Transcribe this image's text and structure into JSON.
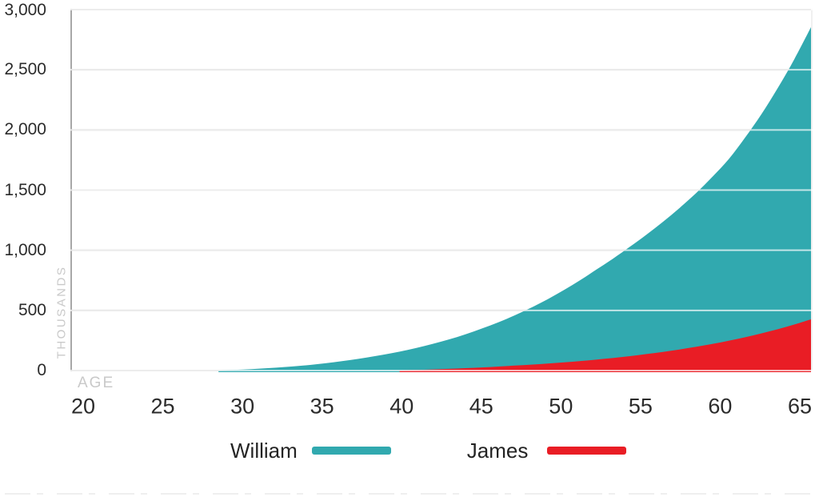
{
  "chart_data": {
    "type": "area",
    "title": "",
    "xlabel": "AGE",
    "ylabel": "THOUSANDS",
    "x_min": 20,
    "x_max": 65,
    "y_min": 0,
    "y_max": 3000,
    "grid": true,
    "legend_position": "bottom",
    "x_ticks": [
      20,
      25,
      30,
      35,
      40,
      45,
      50,
      55,
      60,
      65
    ],
    "y_ticks": [
      {
        "value": 0,
        "label": "0"
      },
      {
        "value": 500,
        "label": "500"
      },
      {
        "value": 1000,
        "label": "1,000"
      },
      {
        "value": 1500,
        "label": "1,500"
      },
      {
        "value": 2000,
        "label": "2,000"
      },
      {
        "value": 2500,
        "label": "2,500"
      },
      {
        "value": 3000,
        "label": "3,000"
      }
    ],
    "x": [
      20,
      21,
      22,
      23,
      24,
      25,
      26,
      27,
      28,
      29,
      30,
      31,
      32,
      33,
      34,
      35,
      36,
      37,
      38,
      39,
      40,
      41,
      42,
      43,
      44,
      45,
      46,
      47,
      48,
      49,
      50,
      51,
      52,
      53,
      54,
      55,
      56,
      57,
      58,
      59,
      60,
      61,
      62,
      63,
      64,
      65
    ],
    "series": [
      {
        "name": "William",
        "color": "#31a9af",
        "values": [
          0,
          0,
          0,
          0,
          0,
          0,
          0,
          0,
          0,
          0,
          6,
          12,
          20,
          29,
          40,
          53,
          69,
          87,
          108,
          131,
          157,
          187,
          221,
          259,
          301,
          349,
          401,
          459,
          523,
          593,
          670,
          753,
          843,
          933,
          1029,
          1129,
          1236,
          1350,
          1473,
          1609,
          1757,
          1937,
          2134,
          2352,
          2591,
          2854
        ]
      },
      {
        "name": "James",
        "color": "#e91d25",
        "values": [
          0,
          0,
          0,
          0,
          0,
          0,
          0,
          0,
          0,
          0,
          0,
          0,
          0,
          0,
          0,
          0,
          0,
          0,
          0,
          0,
          0,
          4,
          9,
          14,
          20,
          26,
          33,
          41,
          49,
          58,
          68,
          79,
          92,
          105,
          120,
          137,
          155,
          175,
          197,
          221,
          248,
          277,
          309,
          344,
          383,
          426
        ]
      }
    ]
  },
  "legend": {
    "items": [
      {
        "label": "William",
        "color": "#31a9af"
      },
      {
        "label": "James",
        "color": "#e91d25"
      }
    ]
  },
  "style": {
    "gridline_color": "#c0c0c0",
    "axis_line_color": "#a8a8a8",
    "right_border_color": "#dedede",
    "tick_label_color": "#2b2b2b",
    "axis_title_color": "#c9c9c9",
    "divider_color": "#efefef"
  }
}
